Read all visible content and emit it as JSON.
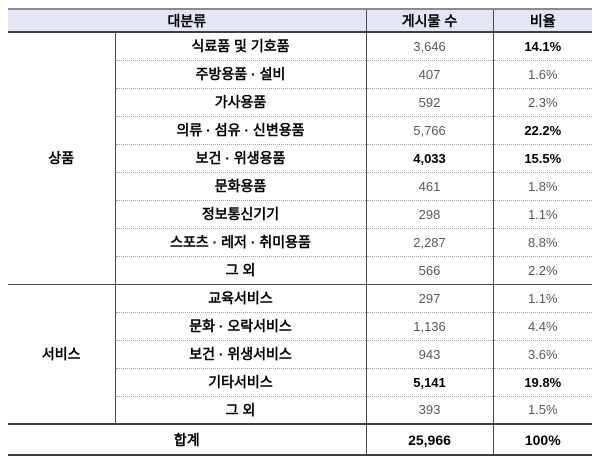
{
  "table": {
    "header": {
      "category": "대분류",
      "count": "게시물 수",
      "ratio": "비율"
    },
    "sections": [
      {
        "group": "상품",
        "rows": [
          {
            "label": "식료품 및 기호품",
            "count": "3,646",
            "ratio": "14.1%",
            "bold_count": false,
            "bold_ratio": true
          },
          {
            "label": "주방용품 · 설비",
            "count": "407",
            "ratio": "1.6%",
            "bold_count": false,
            "bold_ratio": false
          },
          {
            "label": "가사용품",
            "count": "592",
            "ratio": "2.3%",
            "bold_count": false,
            "bold_ratio": false
          },
          {
            "label": "의류 · 섬유 · 신변용품",
            "count": "5,766",
            "ratio": "22.2%",
            "bold_count": false,
            "bold_ratio": true
          },
          {
            "label": "보건 · 위생용품",
            "count": "4,033",
            "ratio": "15.5%",
            "bold_count": true,
            "bold_ratio": true
          },
          {
            "label": "문화용품",
            "count": "461",
            "ratio": "1.8%",
            "bold_count": false,
            "bold_ratio": false
          },
          {
            "label": "정보통신기기",
            "count": "298",
            "ratio": "1.1%",
            "bold_count": false,
            "bold_ratio": false
          },
          {
            "label": "스포츠 · 레저 · 취미용품",
            "count": "2,287",
            "ratio": "8.8%",
            "bold_count": false,
            "bold_ratio": false
          },
          {
            "label": "그 외",
            "count": "566",
            "ratio": "2.2%",
            "bold_count": false,
            "bold_ratio": false
          }
        ]
      },
      {
        "group": "서비스",
        "rows": [
          {
            "label": "교육서비스",
            "count": "297",
            "ratio": "1.1%",
            "bold_count": false,
            "bold_ratio": false
          },
          {
            "label": "문화 · 오락서비스",
            "count": "1,136",
            "ratio": "4.4%",
            "bold_count": false,
            "bold_ratio": false
          },
          {
            "label": "보건 · 위생서비스",
            "count": "943",
            "ratio": "3.6%",
            "bold_count": false,
            "bold_ratio": false
          },
          {
            "label": "기타서비스",
            "count": "5,141",
            "ratio": "19.8%",
            "bold_count": true,
            "bold_ratio": true
          },
          {
            "label": "그 외",
            "count": "393",
            "ratio": "1.5%",
            "bold_count": false,
            "bold_ratio": false
          }
        ]
      }
    ],
    "total": {
      "label": "합계",
      "count": "25,966",
      "ratio": "100%"
    }
  },
  "colors": {
    "header_bg": "#e4e6f3",
    "muted_text": "#595959",
    "dark_line": "#3f3f3f",
    "dotted_line": "#a6a6a6"
  }
}
